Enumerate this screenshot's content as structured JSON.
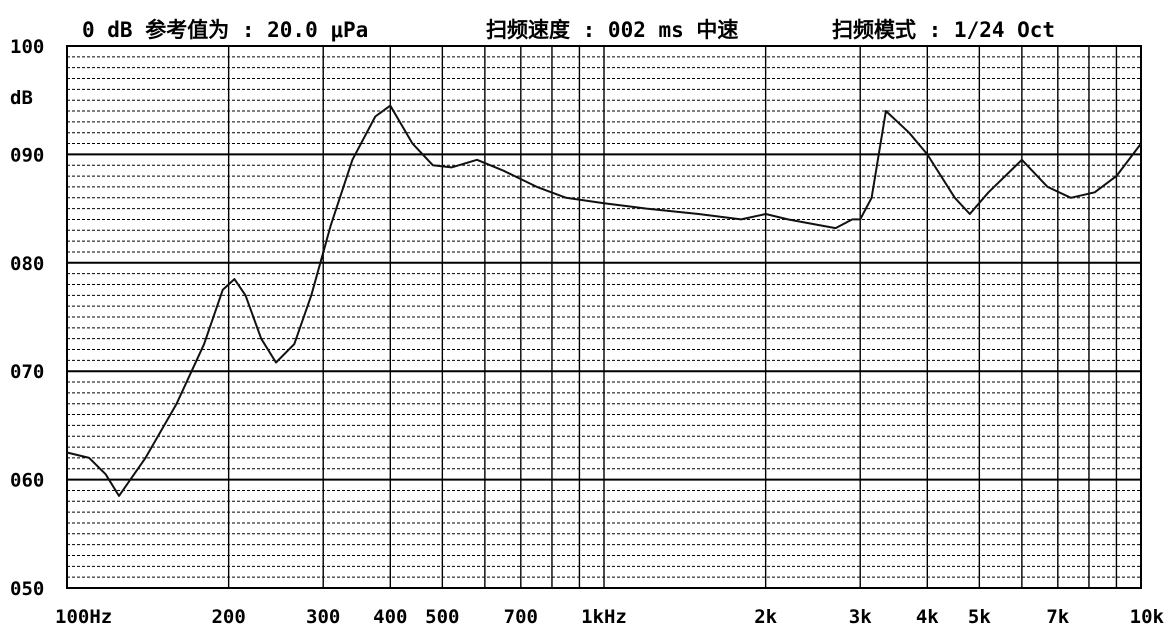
{
  "header": {
    "reference": "0 dB 参考值为 : 20.0 μPa",
    "sweep_speed": "扫频速度 : 002 ms 中速",
    "sweep_mode": "扫频模式 : 1/24 Oct"
  },
  "chart_data": {
    "type": "line",
    "title": "",
    "xlabel": "",
    "ylabel": "dB",
    "x_scale": "log",
    "xlim": [
      100,
      10000
    ],
    "ylim": [
      50,
      100
    ],
    "grid": true,
    "x_ticks": [
      {
        "value": 100,
        "label": "100Hz"
      },
      {
        "value": 200,
        "label": "200"
      },
      {
        "value": 300,
        "label": "300"
      },
      {
        "value": 400,
        "label": "400"
      },
      {
        "value": 500,
        "label": "500"
      },
      {
        "value": 700,
        "label": "700"
      },
      {
        "value": 1000,
        "label": "1kHz"
      },
      {
        "value": 2000,
        "label": "2k"
      },
      {
        "value": 3000,
        "label": "3k"
      },
      {
        "value": 4000,
        "label": "4k"
      },
      {
        "value": 5000,
        "label": "5k"
      },
      {
        "value": 7000,
        "label": "7k"
      },
      {
        "value": 10000,
        "label": "10k"
      }
    ],
    "x_gridlines": [
      100,
      200,
      300,
      400,
      500,
      600,
      700,
      800,
      900,
      1000,
      2000,
      3000,
      4000,
      5000,
      6000,
      7000,
      8000,
      9000,
      10000
    ],
    "y_ticks": [
      {
        "value": 100,
        "label": "100"
      },
      {
        "value": 90,
        "label": "090"
      },
      {
        "value": 80,
        "label": "080"
      },
      {
        "value": 70,
        "label": "070"
      },
      {
        "value": 60,
        "label": "060"
      },
      {
        "value": 50,
        "label": "050"
      }
    ],
    "series": [
      {
        "x": [
          100,
          110,
          118,
          125,
          140,
          160,
          180,
          195,
          205,
          215,
          230,
          245,
          265,
          285,
          310,
          340,
          375,
          400,
          440,
          480,
          520,
          580,
          650,
          750,
          850,
          1000,
          1200,
          1500,
          1800,
          2000,
          2200,
          2500,
          2700,
          2900,
          3000,
          3150,
          3350,
          3700,
          4000,
          4500,
          4800,
          5200,
          6000,
          6700,
          7400,
          8200,
          9000,
          10000
        ],
        "y": [
          62.5,
          62.0,
          60.5,
          58.5,
          62.0,
          67.0,
          72.5,
          77.5,
          78.5,
          77.0,
          73.0,
          70.8,
          72.5,
          77.0,
          83.5,
          89.5,
          93.5,
          94.5,
          91.0,
          89.0,
          88.8,
          89.5,
          88.5,
          87.0,
          86.0,
          85.5,
          85.0,
          84.5,
          84.0,
          84.5,
          84.0,
          83.5,
          83.2,
          84.0,
          84.0,
          86.0,
          94.0,
          92.0,
          90.0,
          86.0,
          84.5,
          86.5,
          89.5,
          87.0,
          86.0,
          86.5,
          88.0,
          91.0
        ]
      }
    ]
  }
}
